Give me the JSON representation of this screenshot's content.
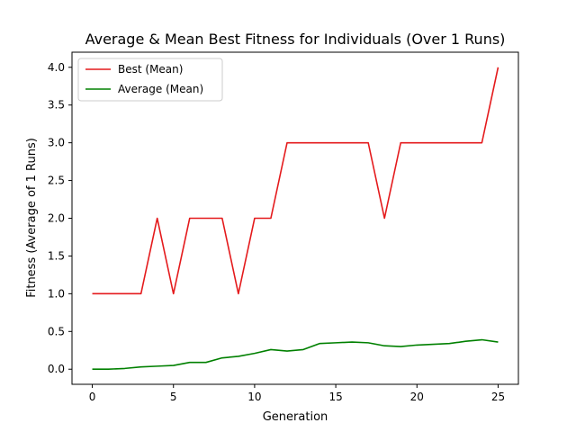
{
  "chart_data": {
    "type": "line",
    "title": "Average & Mean Best Fitness for Individuals (Over 1 Runs)",
    "xlabel": "Generation",
    "ylabel": "Fitness (Average of 1 Runs)",
    "xlim": [
      -1.25,
      26.25
    ],
    "ylim": [
      -0.2,
      4.2
    ],
    "x_ticks": [
      0,
      5,
      10,
      15,
      20,
      25
    ],
    "y_ticks": [
      0.0,
      0.5,
      1.0,
      1.5,
      2.0,
      2.5,
      3.0,
      3.5,
      4.0
    ],
    "x_tick_labels": [
      "0",
      "5",
      "10",
      "15",
      "20",
      "25"
    ],
    "y_tick_labels": [
      "0.0",
      "0.5",
      "1.0",
      "1.5",
      "2.0",
      "2.5",
      "3.0",
      "3.5",
      "4.0"
    ],
    "grid": false,
    "legend_position": "upper-left",
    "x": [
      0,
      1,
      2,
      3,
      4,
      5,
      6,
      7,
      8,
      9,
      10,
      11,
      12,
      13,
      14,
      15,
      16,
      17,
      18,
      19,
      20,
      21,
      22,
      23,
      24,
      25
    ],
    "series": [
      {
        "name": "Best (Mean)",
        "color": "#e41a1c",
        "values": [
          1,
          1,
          1,
          1,
          2,
          1,
          2,
          2,
          2,
          1,
          2,
          2,
          3,
          3,
          3,
          3,
          3,
          3,
          2,
          3,
          3,
          3,
          3,
          3,
          3,
          4
        ]
      },
      {
        "name": "Average (Mean)",
        "color": "#008000",
        "values": [
          0.0,
          0.0,
          0.01,
          0.03,
          0.04,
          0.05,
          0.09,
          0.09,
          0.15,
          0.17,
          0.21,
          0.26,
          0.24,
          0.26,
          0.34,
          0.35,
          0.36,
          0.35,
          0.31,
          0.3,
          0.32,
          0.33,
          0.34,
          0.37,
          0.39,
          0.36
        ]
      }
    ]
  }
}
